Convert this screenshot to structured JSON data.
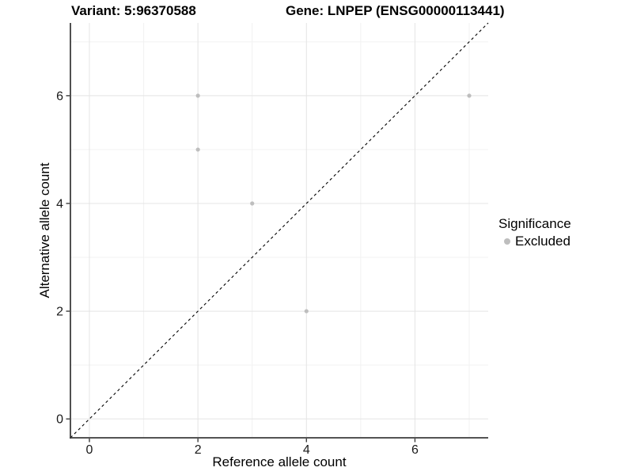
{
  "figure": {
    "title_left": "Variant: 5:96370588",
    "title_right": "Gene: LNPEP (ENSG00000113441)"
  },
  "chart_data": {
    "type": "scatter",
    "title": "Variant: 5:96370588   Gene: LNPEP (ENSG00000113441)",
    "xlabel": "Reference allele count",
    "ylabel": "Alternative allele count",
    "xlim": [
      -0.35,
      7.35
    ],
    "ylim": [
      -0.35,
      7.35
    ],
    "x_ticks": [
      0,
      2,
      4,
      6
    ],
    "y_ticks": [
      0,
      2,
      4,
      6
    ],
    "x_minor": [
      1,
      3,
      5,
      7
    ],
    "y_minor": [
      1,
      3,
      5,
      7
    ],
    "grid": true,
    "series": [
      {
        "name": "Excluded",
        "color": "#bebebe",
        "points": [
          [
            2,
            6
          ],
          [
            2,
            5
          ],
          [
            3,
            4
          ],
          [
            4,
            2
          ],
          [
            7,
            6
          ]
        ]
      }
    ],
    "abline": {
      "slope": 1,
      "intercept": 0,
      "style": "dashed",
      "color": "#000000"
    },
    "legend": {
      "title": "Significance",
      "position": "right",
      "items": [
        {
          "label": "Excluded",
          "color": "#bebebe"
        }
      ]
    },
    "style": {
      "background": "#ffffff",
      "grid_major": "#e4e4e4",
      "grid_minor": "#f2f2f2",
      "axis_line": "#3c3c3c",
      "tick_label_color": "#1a1a1a",
      "point_radius": 2.6
    }
  }
}
